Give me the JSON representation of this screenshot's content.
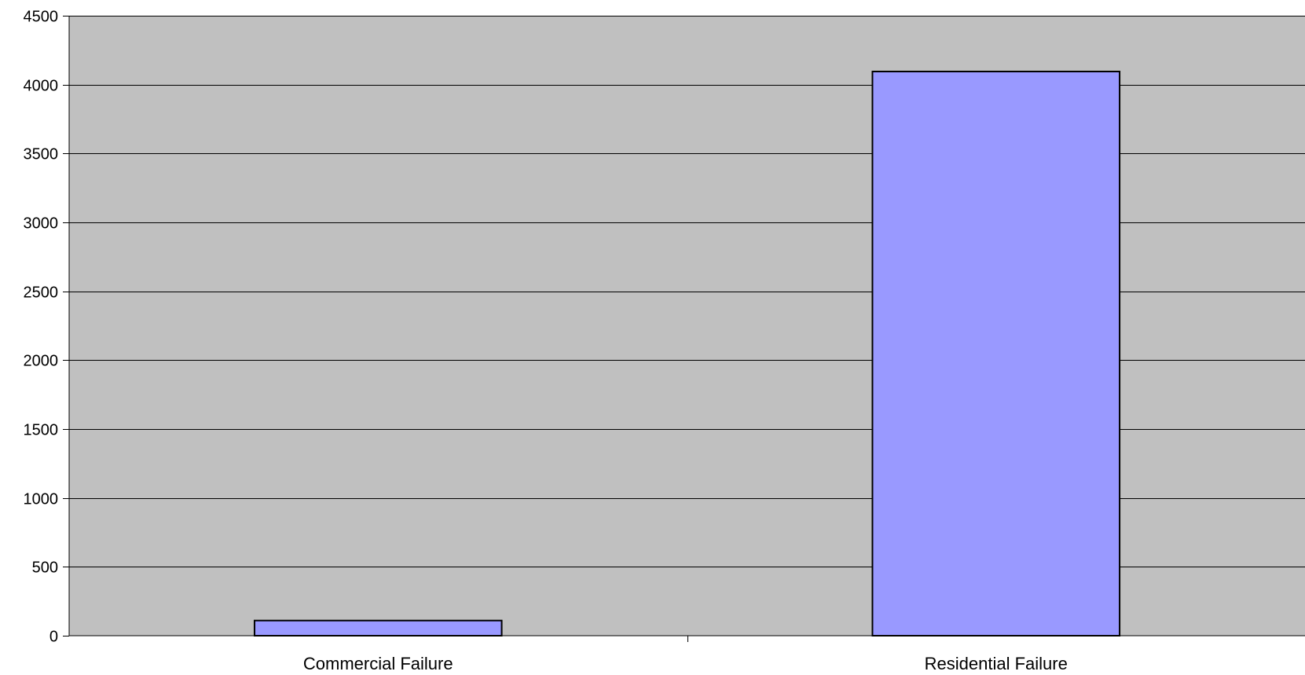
{
  "chart_data": {
    "type": "bar",
    "title": "",
    "xlabel": "",
    "ylabel": "",
    "categories": [
      "Commercial Failure",
      "Residential Failure"
    ],
    "values": [
      110,
      4095
    ],
    "ylim": [
      0,
      4500
    ],
    "yticks": [
      0,
      500,
      1000,
      1500,
      2000,
      2500,
      3000,
      3500,
      4000,
      4500
    ],
    "grid": true,
    "legend": "none"
  },
  "colors": {
    "plot_background": "#c0c0c0",
    "bar_fill": "#9999ff",
    "bar_stroke": "#000000",
    "gridline": "#000000"
  }
}
